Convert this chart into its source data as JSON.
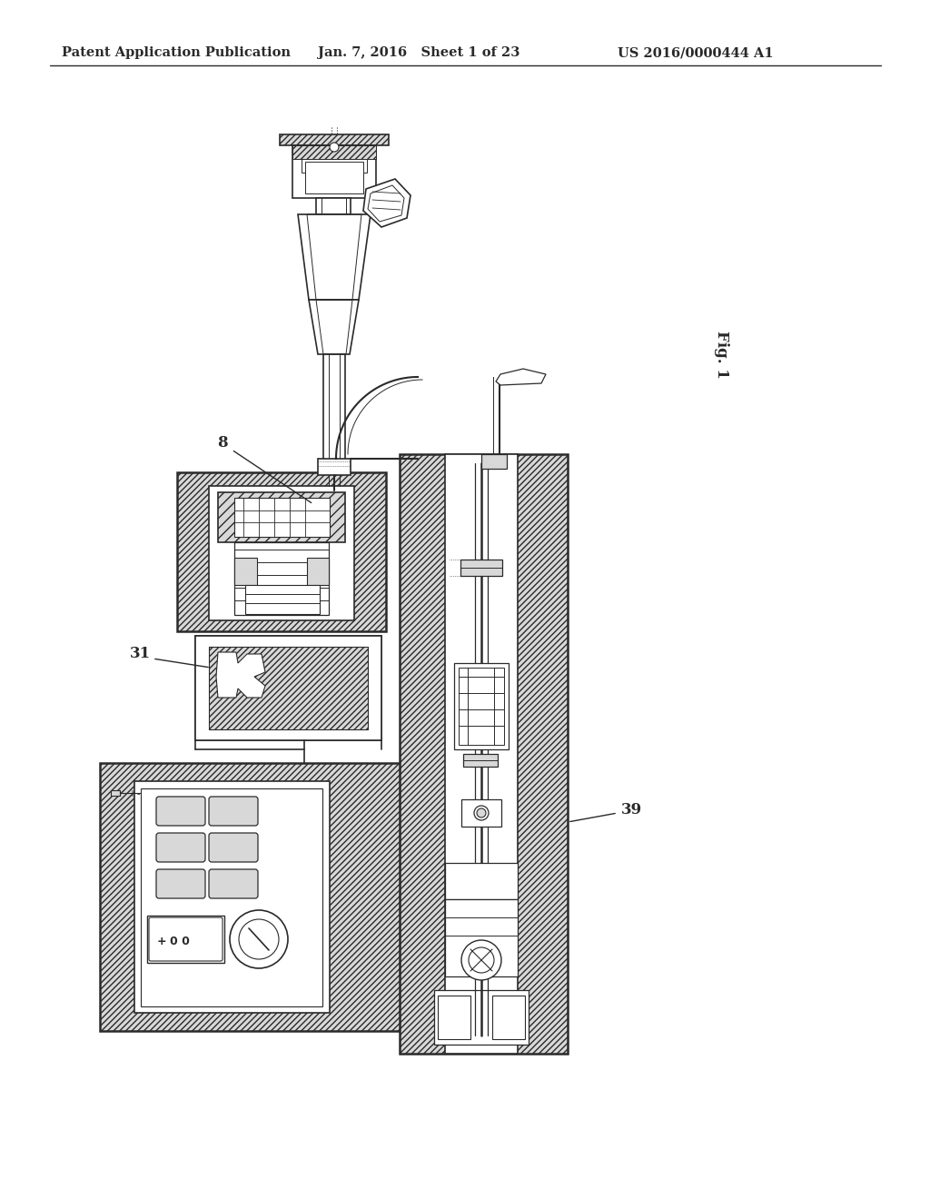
{
  "bg_color": "#ffffff",
  "header_left": "Patent Application Publication",
  "header_mid": "Jan. 7, 2016   Sheet 1 of 23",
  "header_right": "US 2016/0000444 A1",
  "fig_label": "Fig. 1",
  "label_8": "8",
  "label_31": "31",
  "label_39": "39",
  "line_color": "#2a2a2a",
  "hatch_color": "#888888",
  "title_fontsize": 11,
  "label_fontsize": 12,
  "hatch_fc": "#d8d8d8"
}
